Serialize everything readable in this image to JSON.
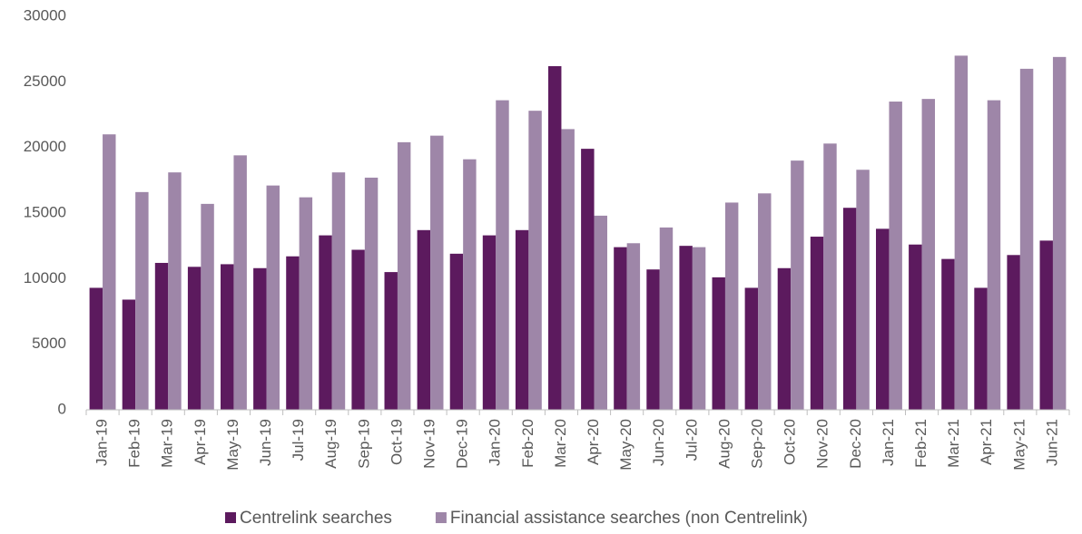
{
  "chart_data": {
    "type": "bar",
    "categories": [
      "Jan-19",
      "Feb-19",
      "Mar-19",
      "Apr-19",
      "May-19",
      "Jun-19",
      "Jul-19",
      "Aug-19",
      "Sep-19",
      "Oct-19",
      "Nov-19",
      "Dec-19",
      "Jan-20",
      "Feb-20",
      "Mar-20",
      "Apr-20",
      "May-20",
      "Jun-20",
      "Jul-20",
      "Aug-20",
      "Sep-20",
      "Oct-20",
      "Nov-20",
      "Dec-20",
      "Jan-21",
      "Feb-21",
      "Mar-21",
      "Apr-21",
      "May-21",
      "Jun-21"
    ],
    "series": [
      {
        "name": "Centrelink searches",
        "color": "#5c1a5e",
        "values": [
          9300,
          8400,
          11200,
          10900,
          11100,
          10800,
          11700,
          13300,
          12200,
          10500,
          13700,
          11900,
          13300,
          13700,
          26200,
          19900,
          12400,
          10700,
          12500,
          10100,
          9300,
          10800,
          13200,
          15400,
          13800,
          12600,
          11500,
          9300,
          11800,
          12900
        ]
      },
      {
        "name": "Financial assistance searches (non Centrelink)",
        "color": "#9e86a8",
        "values": [
          21000,
          16600,
          18100,
          15700,
          19400,
          17100,
          16200,
          18100,
          17700,
          20400,
          20900,
          19100,
          23600,
          22800,
          21400,
          14800,
          12700,
          13900,
          12400,
          15800,
          16500,
          19000,
          20300,
          18300,
          23500,
          23700,
          27000,
          23600,
          26000,
          26900
        ]
      }
    ],
    "ylim": [
      0,
      30000
    ],
    "yticks": [
      0,
      5000,
      10000,
      15000,
      20000,
      25000,
      30000
    ],
    "grid": false,
    "legend": "bottom"
  }
}
